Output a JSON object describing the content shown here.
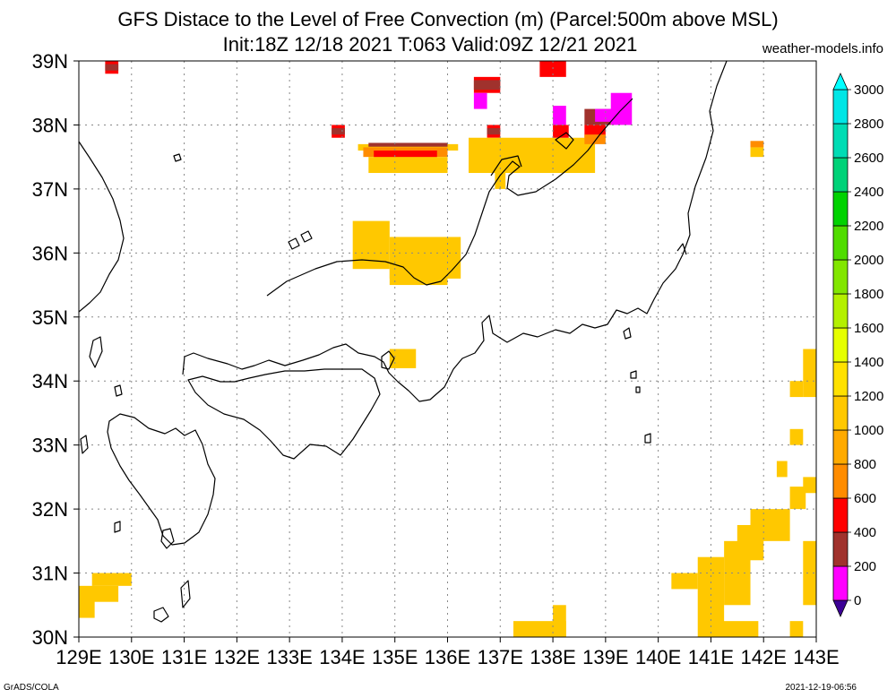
{
  "title_line1": "GFS Distace to the Level of Free Convection (m) (Parcel:500m above MSL)",
  "title_line2": "Init:18Z 12/18 2021 T:063 Valid:09Z 12/21 2021",
  "credit": "weather-models.info",
  "footer_left": "GrADS/COLA",
  "footer_right": "2021-12-19-06:56",
  "lon_labels": [
    "129E",
    "130E",
    "131E",
    "132E",
    "133E",
    "134E",
    "135E",
    "136E",
    "137E",
    "138E",
    "139E",
    "140E",
    "141E",
    "142E",
    "143E"
  ],
  "lat_labels": [
    "30N",
    "31N",
    "32N",
    "33N",
    "34N",
    "35N",
    "36N",
    "37N",
    "38N",
    "39N"
  ],
  "colorbar": {
    "labels": [
      "0",
      "200",
      "400",
      "600",
      "800",
      "1000",
      "1200",
      "1400",
      "1600",
      "1800",
      "2000",
      "2200",
      "2400",
      "2600",
      "2800",
      "3000"
    ],
    "colors": [
      "#3c0096",
      "#ff00ff",
      "#a0322d",
      "#ff0000",
      "#ff8c00",
      "#ffaa00",
      "#ffc800",
      "#ffe100",
      "#e6ff00",
      "#b4f000",
      "#82e600",
      "#50dc00",
      "#00d200",
      "#00d278",
      "#00dcb4",
      "#00e6e6",
      "#00ffff"
    ]
  }
}
